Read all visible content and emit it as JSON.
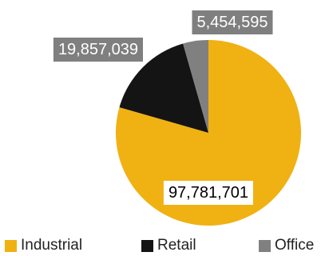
{
  "chart_data": {
    "type": "pie",
    "categories": [
      "Industrial",
      "Retail",
      "Office"
    ],
    "values": [
      97781701,
      19857039,
      5454595
    ],
    "data_labels": [
      "97,781,701",
      "19,857,039",
      "5,454,595"
    ],
    "colors": [
      "#F0B112",
      "#141414",
      "#808080"
    ],
    "label_box_colors": [
      "#FFFFFF",
      "#7F7F7F",
      "#7F7F7F"
    ],
    "label_text_colors": [
      "#000000",
      "#FFFFFF",
      "#FFFFFF"
    ],
    "start_angle_deg": 0,
    "direction": "clockwise",
    "legend_position": "bottom"
  },
  "legend": {
    "items": [
      {
        "label": "Industrial",
        "color": "#F0B112"
      },
      {
        "label": "Retail",
        "color": "#141414"
      },
      {
        "label": "Office",
        "color": "#808080"
      }
    ]
  }
}
